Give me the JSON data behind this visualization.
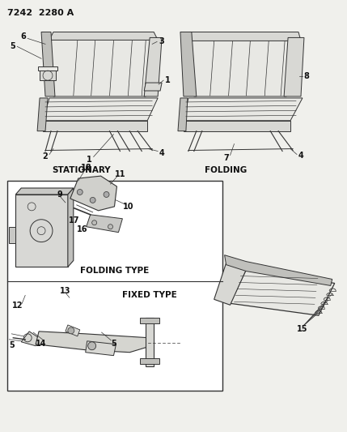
{
  "title": "7242  2280 A",
  "bg_color": "#f0f0ec",
  "line_color": "#333333",
  "text_color": "#111111",
  "fill_light": "#e8e8e4",
  "fill_mid": "#d8d8d4",
  "fill_dark": "#c0c0bc",
  "white": "#ffffff",
  "labels": {
    "stationary": "STATIONARY",
    "folding": "FOLDING",
    "folding_type": "FOLDING TYPE",
    "fixed_type": "FIXED TYPE"
  }
}
